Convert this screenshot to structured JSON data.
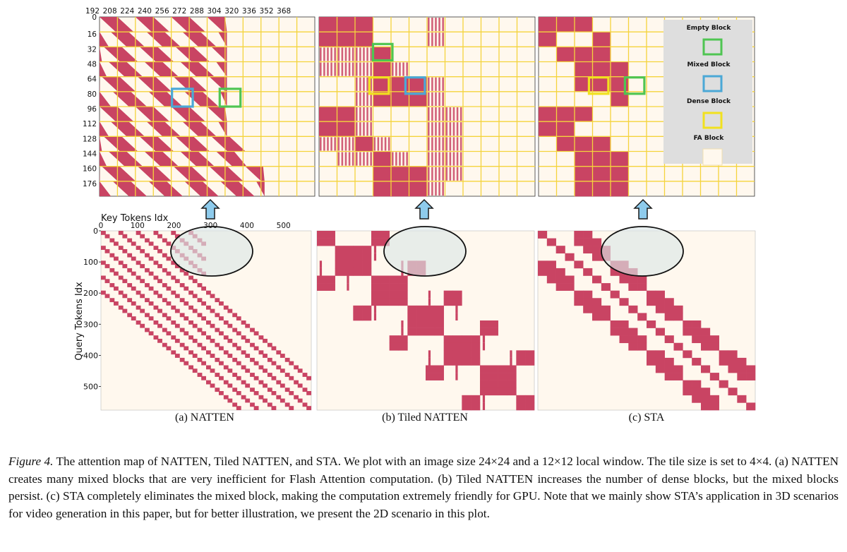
{
  "colors": {
    "active": "#c94463",
    "background_cell": "#fff8ee",
    "grid_line": "#f4d43c",
    "legend_bg": "#dedede",
    "arrow_fill": "#8ecbec",
    "arrow_stroke": "#1a1a1a",
    "empty_block": "#4fc552",
    "mixed_block": "#4ba8d6",
    "dense_block": "#f1e11f",
    "fa_block_fill": "#fff8ee",
    "ellipse_fill": "#dce6e6"
  },
  "top_axis": {
    "x_ticks": [
      "192",
      "208",
      "224",
      "240",
      "256",
      "272",
      "288",
      "304",
      "320",
      "336",
      "352",
      "368"
    ],
    "y_ticks": [
      "0",
      "16",
      "32",
      "48",
      "64",
      "80",
      "96",
      "112",
      "128",
      "144",
      "160",
      "176"
    ]
  },
  "bottom_axis": {
    "x_label": "Key Tokens Idx",
    "y_label": "Query Tokens Idx",
    "x_ticks": [
      "0",
      "100",
      "200",
      "300",
      "400",
      "500"
    ],
    "y_ticks": [
      "0",
      "100",
      "200",
      "300",
      "400",
      "500"
    ]
  },
  "legend": {
    "items": [
      {
        "label": "Empty Block",
        "icon": "empty-block-icon"
      },
      {
        "label": "Mixed Block",
        "icon": "mixed-block-icon"
      },
      {
        "label": "Dense Block",
        "icon": "dense-block-icon"
      },
      {
        "label": "FA Block",
        "icon": "fa-block-icon"
      }
    ]
  },
  "subcaptions": {
    "a": "(a) NATTEN",
    "b": "(b) Tiled NATTEN",
    "c": "(c) STA"
  },
  "caption": {
    "label": "Figure 4.",
    "text": " The attention map of NATTEN, Tiled NATTEN, and STA. We plot with an image size 24×24 and a 12×12 local window. The tile size is set to 4×4. (a) NATTEN creates many mixed blocks that are very inefficient for Flash Attention computation. (b) Tiled NATTEN increases the number of dense blocks, but the mixed blocks persist. (c) STA completely eliminates the mixed block, making the computation extremely friendly for GPU. Note that we mainly show STA’s application in 3D scenarios for video generation in this paper, but for better illustration, we present the 2D scenario in this plot."
  },
  "chart_data": [
    {
      "type": "heatmap",
      "title": "(a) NATTEN",
      "description_zoom": "Zoomed attention map, query tokens 0-191 vs key tokens 192-383, tile size 16",
      "x_ticks": [
        192,
        208,
        224,
        240,
        256,
        272,
        288,
        304,
        320,
        336,
        352,
        368
      ],
      "y_ticks": [
        0,
        16,
        32,
        48,
        64,
        80,
        96,
        112,
        128,
        144,
        160,
        176
      ],
      "full_map": {
        "xlabel": "Key Tokens Idx",
        "ylabel": "Query Tokens Idx",
        "xlim": [
          0,
          576
        ],
        "ylim": [
          0,
          576
        ],
        "image_size": "24x24",
        "window": "12x12"
      }
    },
    {
      "type": "heatmap",
      "title": "(b) Tiled NATTEN",
      "tile_size": "4x4",
      "full_map": {
        "xlim": [
          0,
          576
        ],
        "ylim": [
          0,
          576
        ]
      }
    },
    {
      "type": "heatmap",
      "title": "(c) STA",
      "tile_size": "4x4",
      "full_map": {
        "xlim": [
          0,
          576
        ],
        "ylim": [
          0,
          576
        ]
      }
    }
  ]
}
